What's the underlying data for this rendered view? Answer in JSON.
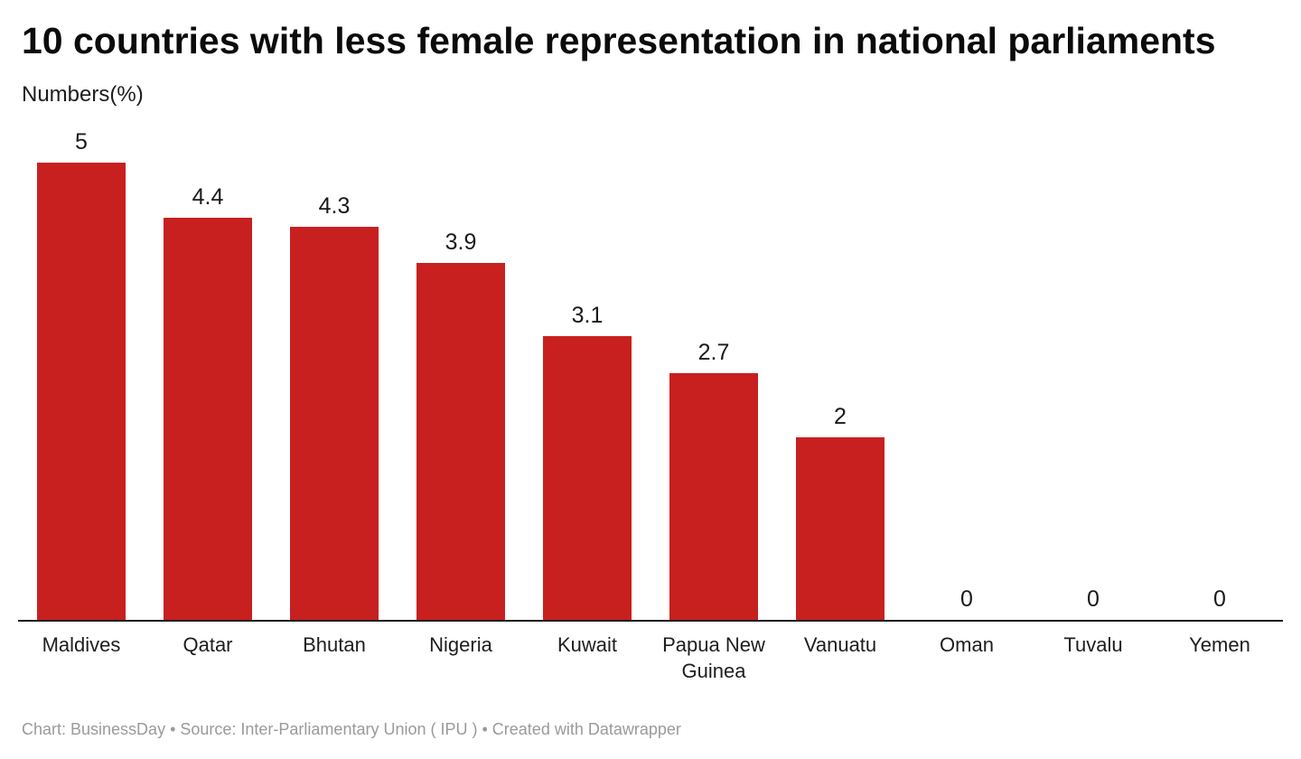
{
  "header": {
    "title": "10 countries with less female representation in national parliaments",
    "subtitle": "Numbers(%)"
  },
  "footer": {
    "text": "Chart: BusinessDay • Source: Inter-Parliamentary Union ( IPU ) • Created with Datawrapper"
  },
  "chart_data": {
    "type": "bar",
    "title": "10 countries with less female representation in national parliaments",
    "ylabel": "Numbers(%)",
    "xlabel": "",
    "categories": [
      "Maldives",
      "Qatar",
      "Bhutan",
      "Nigeria",
      "Kuwait",
      "Papua New Guinea",
      "Vanuatu",
      "Oman",
      "Tuvalu",
      "Yemen"
    ],
    "values": [
      5,
      4.4,
      4.3,
      3.9,
      3.1,
      2.7,
      2,
      0,
      0,
      0
    ],
    "value_labels": [
      "5",
      "4.4",
      "4.3",
      "3.9",
      "3.1",
      "2.7",
      "2",
      "0",
      "0",
      "0"
    ],
    "ylim": [
      0,
      5
    ],
    "grid": "off",
    "legend": "none",
    "bar_color": "#c8201f",
    "axis_color": "#1a1a1a",
    "label_color": "#1a1a1a"
  }
}
